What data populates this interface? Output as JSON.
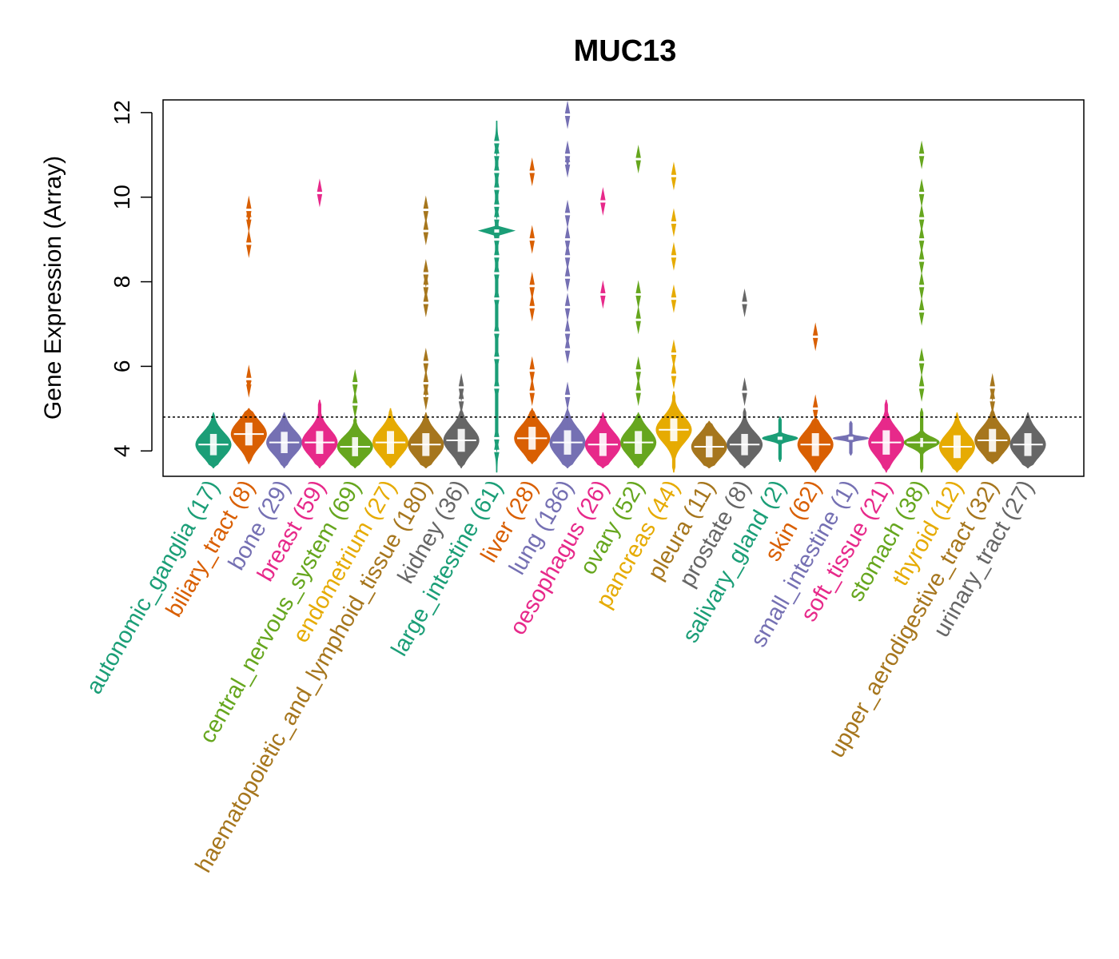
{
  "chart_data": {
    "type": "violin",
    "title": "MUC13",
    "xlabel": "",
    "ylabel": "Gene Expression (Array)",
    "ylim": [
      3.4,
      12.3
    ],
    "yticks": [
      4,
      6,
      8,
      10,
      12
    ],
    "reference_line": 4.8,
    "grid": false,
    "legend": "none",
    "categories": [
      {
        "name": "autonomic_ganglia",
        "n": 17,
        "label": "autonomic_ganglia (17)",
        "color": "#1B9E77",
        "median": 4.15,
        "spread": 0.28,
        "min": 3.6,
        "max": 4.9,
        "outliers": []
      },
      {
        "name": "biliary_tract",
        "n": 8,
        "label": "biliary_tract (8)",
        "color": "#D95F02",
        "median": 4.4,
        "spread": 0.3,
        "min": 3.7,
        "max": 5.0,
        "outliers": [
          5.6,
          5.7,
          8.9,
          9.5,
          9.7
        ]
      },
      {
        "name": "bone",
        "n": 29,
        "label": "bone (29)",
        "color": "#7570B3",
        "median": 4.2,
        "spread": 0.28,
        "min": 3.6,
        "max": 4.9,
        "outliers": []
      },
      {
        "name": "breast",
        "n": 59,
        "label": "breast (59)",
        "color": "#E7298A",
        "median": 4.2,
        "spread": 0.3,
        "min": 3.6,
        "max": 5.2,
        "outliers": [
          10.1
        ]
      },
      {
        "name": "central_nervous_system",
        "n": 69,
        "label": "central_nervous_system (69)",
        "color": "#66A61E",
        "median": 4.1,
        "spread": 0.25,
        "min": 3.6,
        "max": 4.8,
        "outliers": [
          5.1,
          5.6
        ]
      },
      {
        "name": "endometrium",
        "n": 27,
        "label": "endometrium (27)",
        "color": "#E6AB02",
        "median": 4.2,
        "spread": 0.3,
        "min": 3.6,
        "max": 5.0,
        "outliers": []
      },
      {
        "name": "haematopoietic_and_lymphoid_tissue",
        "n": 180,
        "label": "haematopoietic_and_lymphoid_tissue (180)",
        "color": "#A6761D",
        "median": 4.15,
        "spread": 0.3,
        "min": 3.6,
        "max": 4.9,
        "outliers": [
          5.3,
          5.6,
          6.1,
          7.5,
          7.9,
          8.2,
          9.2,
          9.7
        ]
      },
      {
        "name": "kidney",
        "n": 36,
        "label": "kidney (36)",
        "color": "#666666",
        "median": 4.25,
        "spread": 0.3,
        "min": 3.6,
        "max": 5.0,
        "outliers": [
          5.2,
          5.5
        ]
      },
      {
        "name": "large_intestine",
        "n": 61,
        "label": "large_intestine (61)",
        "color": "#1B9E77",
        "median": 9.2,
        "spread": 0.05,
        "min": 3.5,
        "max": 11.8,
        "outliers": [
          4.0,
          4.3,
          5.5,
          6.2,
          6.8,
          7.6,
          8.2,
          8.6,
          9.0,
          9.5,
          9.8,
          10.2,
          10.6,
          11.0,
          11.3
        ]
      },
      {
        "name": "liver",
        "n": 28,
        "label": "liver (28)",
        "color": "#D95F02",
        "median": 4.3,
        "spread": 0.3,
        "min": 3.7,
        "max": 5.0,
        "outliers": [
          5.4,
          5.9,
          7.4,
          7.9,
          9.0,
          10.6
        ]
      },
      {
        "name": "lung",
        "n": 186,
        "label": "lung (186)",
        "color": "#7570B3",
        "median": 4.2,
        "spread": 0.32,
        "min": 3.6,
        "max": 5.0,
        "outliers": [
          5.3,
          6.4,
          6.8,
          7.4,
          8.1,
          8.6,
          9.0,
          9.6,
          10.8,
          11.0,
          11.95
        ]
      },
      {
        "name": "oesophagus",
        "n": 26,
        "label": "oesophagus (26)",
        "color": "#E7298A",
        "median": 4.15,
        "spread": 0.3,
        "min": 3.6,
        "max": 4.9,
        "outliers": [
          7.7,
          9.9
        ]
      },
      {
        "name": "ovary",
        "n": 52,
        "label": "ovary (52)",
        "color": "#66A61E",
        "median": 4.2,
        "spread": 0.3,
        "min": 3.6,
        "max": 4.9,
        "outliers": [
          5.4,
          5.9,
          7.1,
          7.7,
          10.9
        ]
      },
      {
        "name": "pancreas",
        "n": 44,
        "label": "pancreas (44)",
        "color": "#E6AB02",
        "median": 4.5,
        "spread": 0.3,
        "min": 3.5,
        "max": 5.4,
        "outliers": [
          5.8,
          6.3,
          7.6,
          8.6,
          9.4,
          10.5
        ]
      },
      {
        "name": "pleura",
        "n": 11,
        "label": "pleura (11)",
        "color": "#A6761D",
        "median": 4.1,
        "spread": 0.28,
        "min": 3.6,
        "max": 4.7,
        "outliers": []
      },
      {
        "name": "prostate",
        "n": 8,
        "label": "prostate (8)",
        "color": "#666666",
        "median": 4.15,
        "spread": 0.28,
        "min": 3.6,
        "max": 5.0,
        "outliers": [
          5.4,
          7.5
        ]
      },
      {
        "name": "salivary_gland",
        "n": 2,
        "label": "salivary_gland (2)",
        "color": "#1B9E77",
        "median": 4.3,
        "spread": 0.06,
        "min": 3.75,
        "max": 4.8,
        "outliers": []
      },
      {
        "name": "skin",
        "n": 62,
        "label": "skin (62)",
        "color": "#D95F02",
        "median": 4.15,
        "spread": 0.3,
        "min": 3.5,
        "max": 4.8,
        "outliers": [
          5.0,
          6.7
        ]
      },
      {
        "name": "small_intestine",
        "n": 1,
        "label": "small_intestine (1)",
        "color": "#7570B3",
        "median": 4.3,
        "spread": 0.04,
        "min": 3.9,
        "max": 4.7,
        "outliers": []
      },
      {
        "name": "soft_tissue",
        "n": 21,
        "label": "soft_tissue (21)",
        "color": "#E7298A",
        "median": 4.2,
        "spread": 0.32,
        "min": 3.5,
        "max": 5.2,
        "outliers": []
      },
      {
        "name": "stomach",
        "n": 38,
        "label": "stomach (38)",
        "color": "#66A61E",
        "median": 4.2,
        "spread": 0.12,
        "min": 3.5,
        "max": 5.0,
        "outliers": [
          5.5,
          6.1,
          7.3,
          7.9,
          8.5,
          9.0,
          9.5,
          10.1,
          11.0
        ]
      },
      {
        "name": "thyroid",
        "n": 12,
        "label": "thyroid (12)",
        "color": "#E6AB02",
        "median": 4.1,
        "spread": 0.3,
        "min": 3.5,
        "max": 4.9,
        "outliers": []
      },
      {
        "name": "upper_aerodigestive_tract",
        "n": 32,
        "label": "upper_aerodigestive_tract (32)",
        "color": "#A6761D",
        "median": 4.25,
        "spread": 0.3,
        "min": 3.7,
        "max": 5.0,
        "outliers": [
          5.2,
          5.5
        ]
      },
      {
        "name": "urinary_tract",
        "n": 27,
        "label": "urinary_tract (27)",
        "color": "#666666",
        "median": 4.15,
        "spread": 0.3,
        "min": 3.6,
        "max": 4.9,
        "outliers": []
      }
    ]
  }
}
